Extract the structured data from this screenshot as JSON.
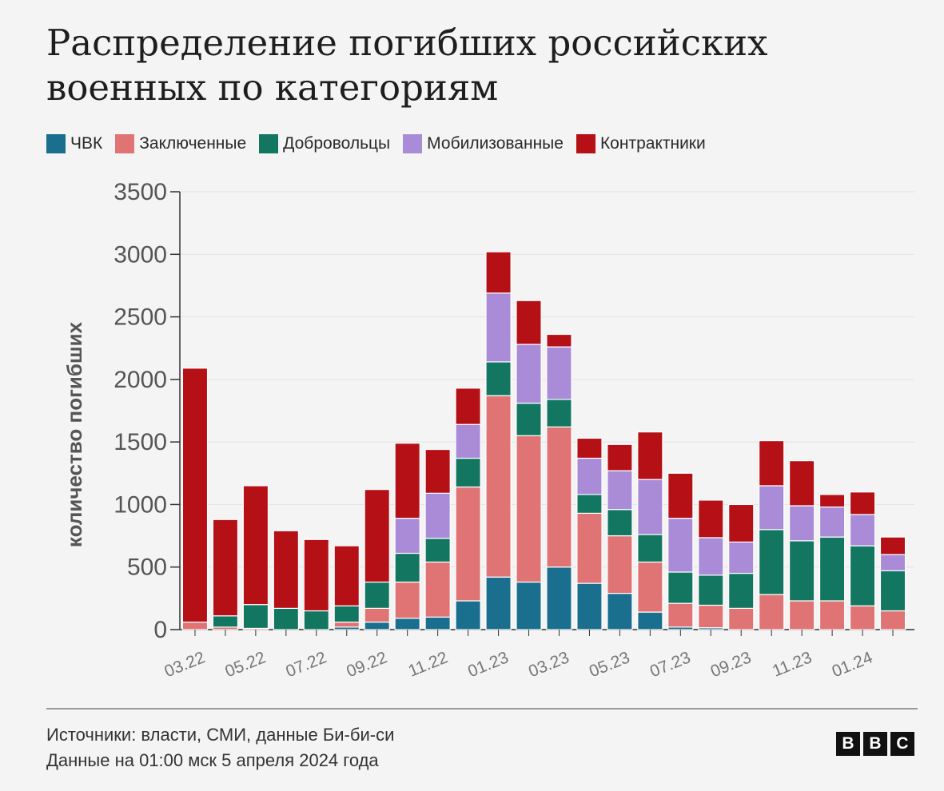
{
  "title": "Распределение погибших российских военных по категориям",
  "footer": {
    "sources": "Источники: власти, СМИ, данные Би-би-си",
    "date_note": "Данные на 01:00 мск 5 апреля 2024 года"
  },
  "logo": {
    "letters": [
      "B",
      "B",
      "C"
    ]
  },
  "chart_data": {
    "type": "bar",
    "stacked": true,
    "ylabel": "количество погибших",
    "ylim": [
      0,
      3500
    ],
    "yticks": [
      0,
      500,
      1000,
      1500,
      2000,
      2500,
      3000,
      3500
    ],
    "grid": true,
    "legend_position": "top-left",
    "tick_labels": [
      {
        "label": "03.22",
        "at": 0
      },
      {
        "label": "05.22",
        "at": 2
      },
      {
        "label": "07.22",
        "at": 4
      },
      {
        "label": "09.22",
        "at": 6
      },
      {
        "label": "11.22",
        "at": 8
      },
      {
        "label": "01.23",
        "at": 10
      },
      {
        "label": "03.23",
        "at": 12
      },
      {
        "label": "05.23",
        "at": 14
      },
      {
        "label": "07.23",
        "at": 16
      },
      {
        "label": "09.23",
        "at": 18
      },
      {
        "label": "11.23",
        "at": 20
      },
      {
        "label": "01.24",
        "at": 22
      }
    ],
    "series": [
      {
        "name": "ЧВК",
        "color": "#1a6e8e",
        "values": [
          0,
          0,
          0,
          0,
          0,
          20,
          60,
          90,
          100,
          230,
          420,
          380,
          500,
          370,
          290,
          140,
          20,
          15,
          0,
          0,
          0,
          0,
          0,
          0
        ]
      },
      {
        "name": "Заключенные",
        "color": "#e07474",
        "values": [
          60,
          20,
          10,
          0,
          0,
          40,
          110,
          290,
          440,
          910,
          1450,
          1170,
          1120,
          560,
          460,
          400,
          190,
          180,
          170,
          280,
          230,
          230,
          190,
          150
        ]
      },
      {
        "name": "Добровольцы",
        "color": "#137661",
        "values": [
          0,
          90,
          190,
          170,
          150,
          130,
          210,
          230,
          190,
          230,
          270,
          260,
          220,
          150,
          210,
          220,
          250,
          240,
          280,
          520,
          480,
          510,
          480,
          320
        ]
      },
      {
        "name": "Мобилизованные",
        "color": "#a98bd8",
        "values": [
          0,
          0,
          0,
          0,
          0,
          0,
          0,
          280,
          360,
          270,
          550,
          470,
          420,
          290,
          310,
          440,
          430,
          300,
          250,
          350,
          280,
          240,
          250,
          130
        ]
      },
      {
        "name": "Контрактники",
        "color": "#b51016",
        "values": [
          2030,
          770,
          950,
          620,
          570,
          480,
          740,
          600,
          350,
          290,
          330,
          350,
          100,
          160,
          210,
          380,
          360,
          300,
          300,
          360,
          360,
          100,
          180,
          140
        ]
      }
    ]
  }
}
